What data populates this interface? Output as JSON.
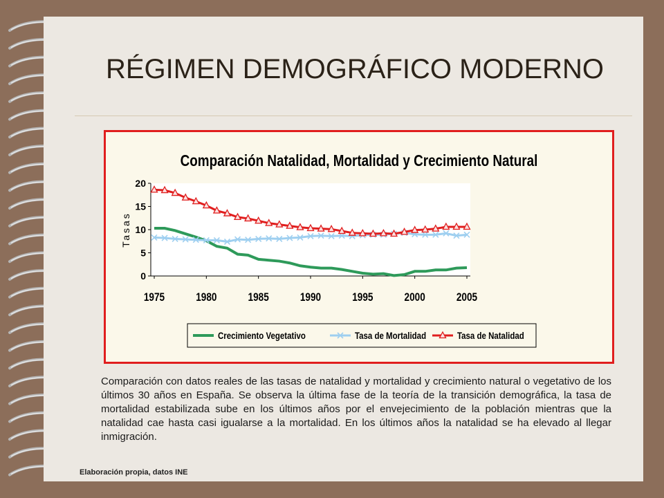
{
  "slide": {
    "title": "RÉGIMEN DEMOGRÁFICO MODERNO",
    "description": "Comparación con datos reales de las tasas de natalidad y mortalidad y crecimiento natural o vegetativo de los últimos 30 años en España. Se observa la última fase de la teoría de la transición demográfica, la tasa de mortalidad estabilizada sube en los últimos años por el envejecimiento de la población mientras que la natalidad cae hasta casi igualarse a la mortalidad. En los últimos años la natalidad se ha elevado al llegar inmigración.",
    "source": "Elaboración propia, datos INE"
  },
  "chart_data": {
    "type": "line",
    "title": "Comparación Natalidad, Mortalidad y Crecimiento Natural",
    "ylabel": "Tasas",
    "xlabel": "",
    "ylim": [
      0,
      20
    ],
    "yticks": [
      0,
      5,
      10,
      15,
      20
    ],
    "xticks": [
      1975,
      1980,
      1985,
      1990,
      1995,
      2000,
      2005
    ],
    "x": [
      1975,
      1976,
      1977,
      1978,
      1979,
      1980,
      1981,
      1982,
      1983,
      1984,
      1985,
      1986,
      1987,
      1988,
      1989,
      1990,
      1991,
      1992,
      1993,
      1994,
      1995,
      1996,
      1997,
      1998,
      1999,
      2000,
      2001,
      2002,
      2003,
      2004,
      2005
    ],
    "legend_position": "bottom",
    "series": [
      {
        "name": "Crecimiento Vegetativo",
        "color": "#2e9a5a",
        "marker": "none",
        "values": [
          10.3,
          10.3,
          9.8,
          9.1,
          8.4,
          7.6,
          6.4,
          6.0,
          4.7,
          4.5,
          3.6,
          3.4,
          3.2,
          2.8,
          2.2,
          1.9,
          1.7,
          1.7,
          1.4,
          1.0,
          0.6,
          0.4,
          0.5,
          0.1,
          0.3,
          1.0,
          1.0,
          1.3,
          1.3,
          1.7,
          1.8
        ]
      },
      {
        "name": "Tasa de Mortalidad",
        "color": "#9ecff0",
        "marker": "x",
        "values": [
          8.3,
          8.2,
          8.0,
          7.9,
          7.8,
          7.7,
          7.7,
          7.4,
          7.9,
          7.8,
          8.0,
          8.1,
          8.0,
          8.2,
          8.3,
          8.6,
          8.7,
          8.6,
          8.7,
          8.6,
          8.8,
          8.9,
          8.9,
          9.1,
          9.3,
          9.0,
          8.9,
          8.9,
          9.2,
          8.7,
          8.9
        ]
      },
      {
        "name": "Tasa de Natalidad",
        "color": "#e01e1e",
        "marker": "triangle",
        "values": [
          18.6,
          18.5,
          17.9,
          16.9,
          16.1,
          15.2,
          14.1,
          13.5,
          12.7,
          12.4,
          11.9,
          11.4,
          11.1,
          10.8,
          10.5,
          10.3,
          10.2,
          10.1,
          9.7,
          9.3,
          9.2,
          9.1,
          9.2,
          9.1,
          9.5,
          9.9,
          10.0,
          10.2,
          10.6,
          10.6,
          10.6
        ]
      }
    ]
  }
}
